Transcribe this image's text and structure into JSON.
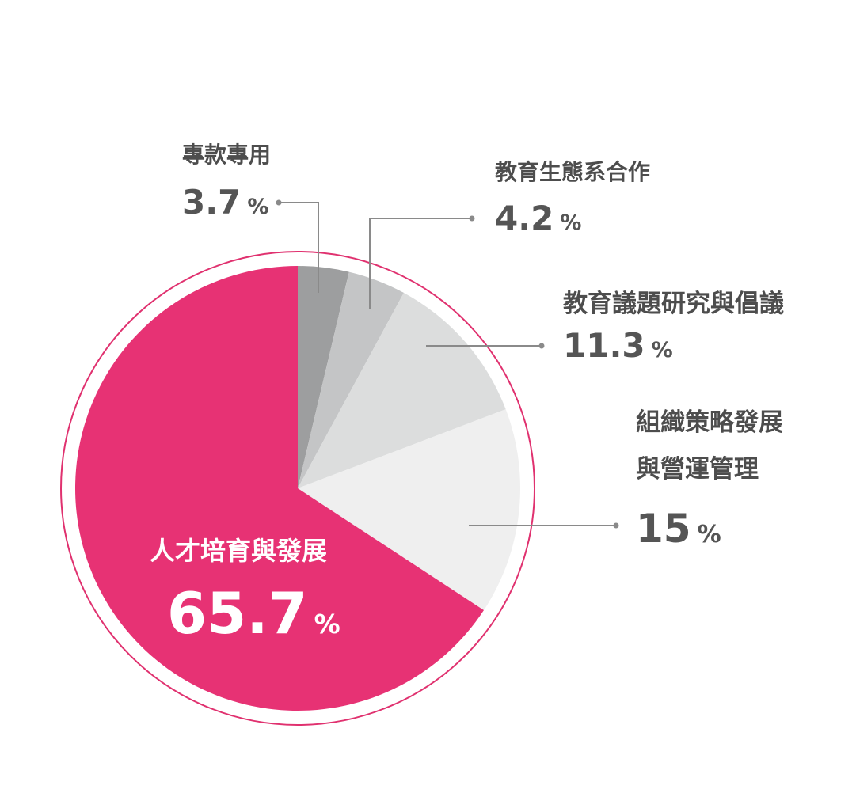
{
  "chart_data": {
    "type": "pie",
    "unit": "%",
    "colors": {
      "outline": "#e0316f",
      "leader": "#8a8a8a"
    },
    "slices": [
      {
        "label_lines": [
          "專款專用"
        ],
        "value": 3.7,
        "value_text": "3.7",
        "color": "#9d9e9f"
      },
      {
        "label_lines": [
          "教育生態系合作"
        ],
        "value": 4.2,
        "value_text": "4.2",
        "color": "#c4c5c6"
      },
      {
        "label_lines": [
          "教育議題研究與倡議"
        ],
        "value": 11.3,
        "value_text": "11.3",
        "color": "#dcdddd"
      },
      {
        "label_lines": [
          "組織策略發展",
          "與營運管理"
        ],
        "value": 15,
        "value_text": "15",
        "color": "#efefef"
      },
      {
        "label_lines": [
          "人才培育與發展"
        ],
        "value": 65.7,
        "value_text": "65.7",
        "color": "#e73274"
      }
    ]
  }
}
